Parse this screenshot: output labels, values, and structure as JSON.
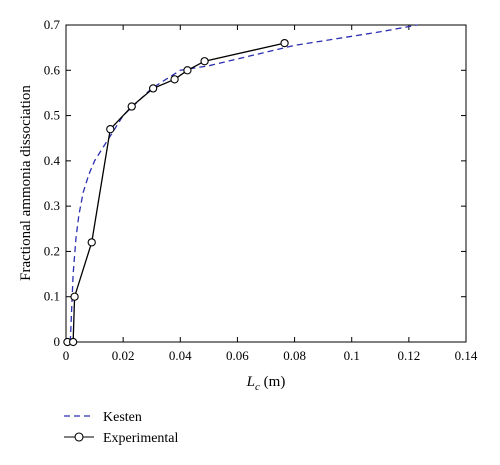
{
  "chart_data": {
    "type": "line",
    "xlabel_main": "L",
    "xlabel_sub": "c",
    "xlabel_unit": " (m)",
    "ylabel": "Fractional ammonia dissociation",
    "xlim": [
      0,
      0.14
    ],
    "ylim": [
      0,
      0.7
    ],
    "x_ticks": [
      {
        "value": 0,
        "label": "0"
      },
      {
        "value": 0.02,
        "label": "0.02"
      },
      {
        "value": 0.04,
        "label": "0.04"
      },
      {
        "value": 0.06,
        "label": "0.06"
      },
      {
        "value": 0.08,
        "label": "0.08"
      },
      {
        "value": 0.1,
        "label": "0.1"
      },
      {
        "value": 0.12,
        "label": "0.12"
      },
      {
        "value": 0.14,
        "label": "0.14"
      }
    ],
    "y_ticks": [
      {
        "value": 0,
        "label": "0"
      },
      {
        "value": 0.1,
        "label": "0.1"
      },
      {
        "value": 0.2,
        "label": "0.2"
      },
      {
        "value": 0.3,
        "label": "0.3"
      },
      {
        "value": 0.4,
        "label": "0.4"
      },
      {
        "value": 0.5,
        "label": "0.5"
      },
      {
        "value": 0.6,
        "label": "0.6"
      },
      {
        "value": 0.7,
        "label": "0.7"
      }
    ],
    "grid": false,
    "legend_position": "below-left",
    "series": [
      {
        "name": "Kesten",
        "style": "dashed",
        "color": "#2b2fb0",
        "x": [
          0.0015,
          0.0025,
          0.0035,
          0.0045,
          0.006,
          0.008,
          0.01,
          0.013,
          0.016,
          0.02,
          0.025,
          0.03,
          0.035,
          0.04,
          0.045,
          0.05,
          0.06,
          0.07,
          0.08,
          0.09,
          0.1,
          0.11,
          0.123
        ],
        "y": [
          0.0,
          0.15,
          0.23,
          0.28,
          0.33,
          0.37,
          0.4,
          0.43,
          0.46,
          0.5,
          0.53,
          0.56,
          0.58,
          0.6,
          0.605,
          0.61,
          0.625,
          0.64,
          0.655,
          0.665,
          0.675,
          0.685,
          0.7
        ]
      },
      {
        "name": "Experimental",
        "style": "solid-circle",
        "color": "#000000",
        "x": [
          0.0005,
          0.0025,
          0.003,
          0.009,
          0.0155,
          0.023,
          0.0305,
          0.038,
          0.0425,
          0.0485,
          0.0765
        ],
        "y": [
          0.0,
          0.0,
          0.1,
          0.22,
          0.47,
          0.52,
          0.56,
          0.58,
          0.6,
          0.62,
          0.66
        ]
      }
    ]
  }
}
